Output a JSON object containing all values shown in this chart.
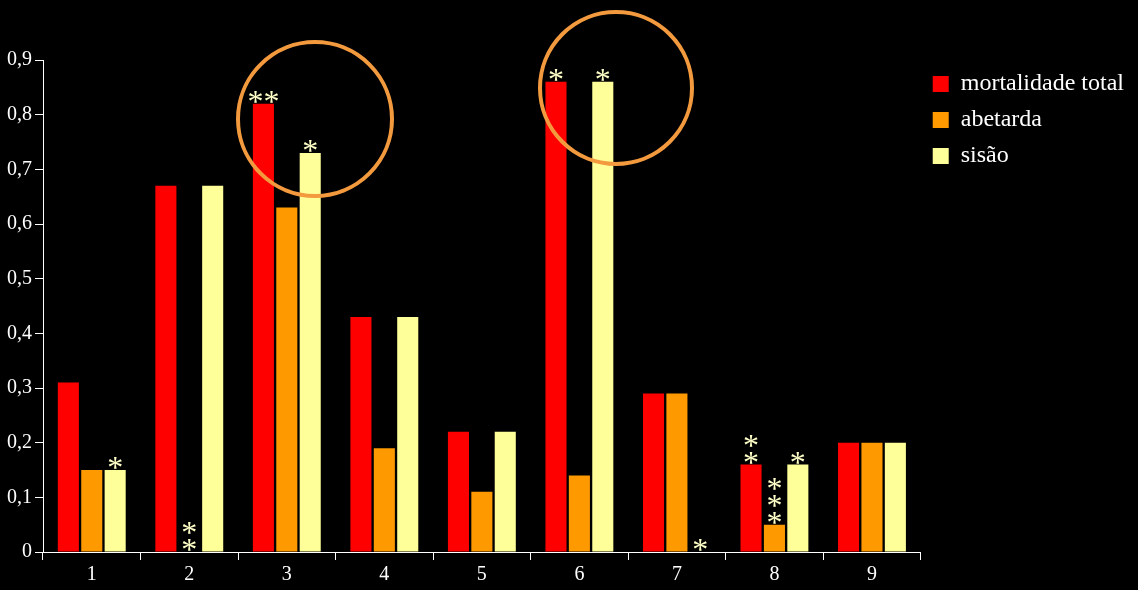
{
  "chart_data": {
    "type": "bar",
    "categories": [
      "1",
      "2",
      "3",
      "4",
      "5",
      "6",
      "7",
      "8",
      "9"
    ],
    "series": [
      {
        "name": "mortalidade total",
        "color": "#ff0000",
        "values": [
          0.31,
          0.67,
          0.82,
          0.43,
          0.22,
          0.86,
          0.29,
          0.16,
          0.2
        ]
      },
      {
        "name": "abetarda",
        "color": "#ff9900",
        "values": [
          0.15,
          0,
          0.63,
          0.19,
          0.11,
          0.14,
          0.29,
          0.05,
          0.2
        ]
      },
      {
        "name": "sisão",
        "color": "#ffff99",
        "values": [
          0.15,
          0.67,
          0.73,
          0.43,
          0.22,
          0.86,
          0,
          0.16,
          0.2
        ]
      }
    ],
    "ylim": [
      0,
      0.9
    ],
    "yticks": [
      0,
      {
        "value": 0.1,
        "label": "0,1"
      },
      {
        "value": 0.2,
        "label": "0,2"
      },
      {
        "value": 0.3,
        "label": "0,3"
      },
      {
        "value": 0.4,
        "label": "0,4"
      },
      {
        "value": 0.5,
        "label": "0,5"
      },
      {
        "value": 0.6,
        "label": "0,6"
      },
      {
        "value": 0.7,
        "label": "0,7"
      },
      {
        "value": 0.8,
        "label": "0,8"
      },
      {
        "value": 0.9,
        "label": "0,9"
      }
    ],
    "grid": false,
    "legend": "top right",
    "annotations": [
      "*",
      "**",
      "**",
      "*",
      "*",
      "*",
      "*",
      "*",
      "**",
      "***"
    ]
  }
}
